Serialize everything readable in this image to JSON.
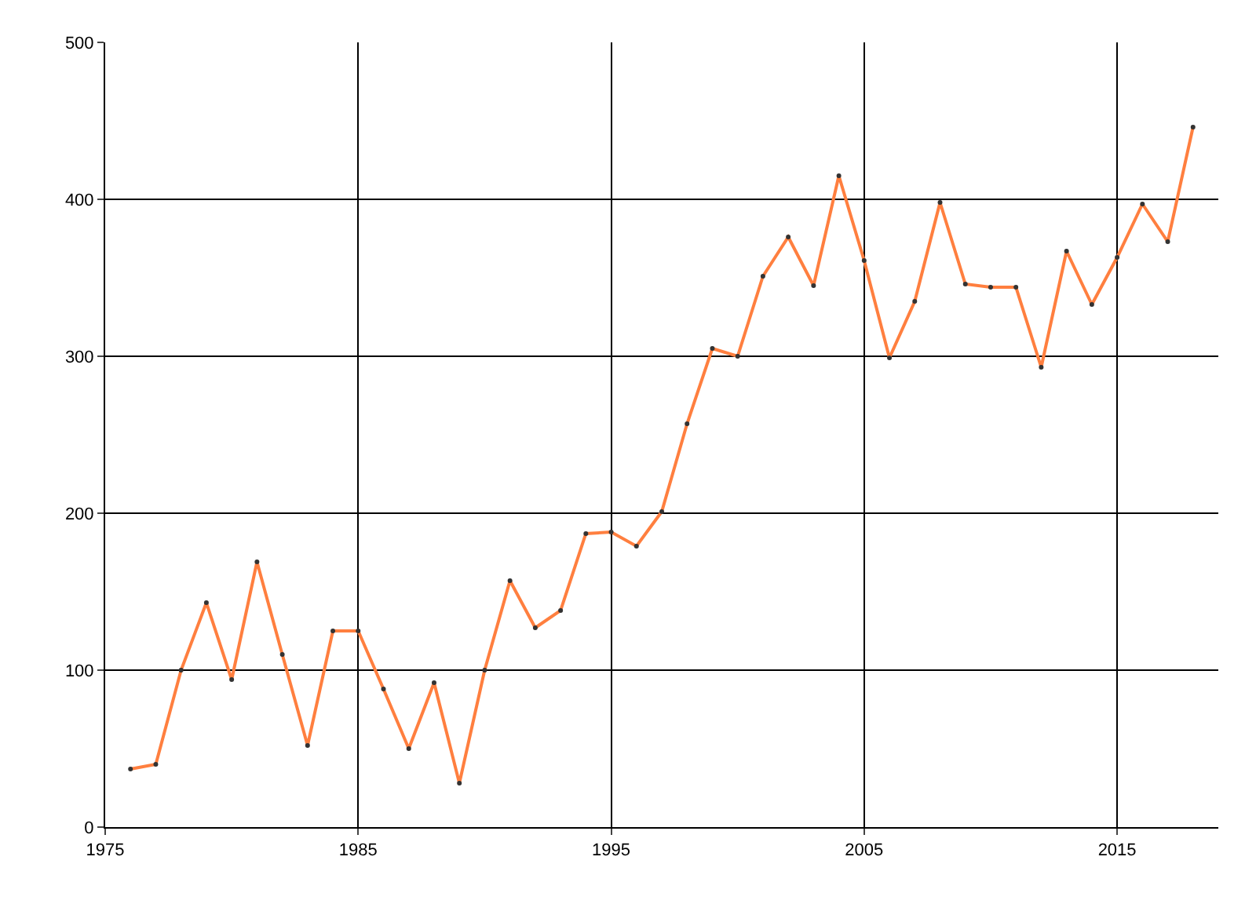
{
  "chart_data": {
    "type": "line",
    "x": [
      1976,
      1977,
      1978,
      1979,
      1980,
      1981,
      1982,
      1983,
      1984,
      1985,
      1986,
      1987,
      1988,
      1989,
      1990,
      1991,
      1992,
      1993,
      1994,
      1995,
      1996,
      1997,
      1998,
      1999,
      2000,
      2001,
      2002,
      2003,
      2004,
      2005,
      2006,
      2007,
      2008,
      2009,
      2010,
      2011,
      2012,
      2013,
      2014,
      2015,
      2016,
      2017,
      2018
    ],
    "series": [
      {
        "color": "#ff7f3f",
        "values": [
          37,
          40,
          100,
          143,
          94,
          169,
          110,
          52,
          125,
          125,
          88,
          50,
          92,
          28,
          100,
          157,
          127,
          138,
          187,
          188,
          179,
          201,
          257,
          305,
          300,
          351,
          376,
          345,
          415,
          361,
          299,
          335,
          398,
          346,
          344,
          344,
          293,
          367,
          333,
          363,
          397,
          373,
          446
        ]
      }
    ],
    "xlim": [
      1975,
      2019
    ],
    "xticks": [
      1975,
      1985,
      1995,
      2005,
      2015
    ],
    "ylim": [
      0,
      500
    ],
    "yticks": [
      0,
      100,
      200,
      300,
      400,
      500
    ],
    "grid": true,
    "marker": "circle",
    "line_style": "solid"
  }
}
